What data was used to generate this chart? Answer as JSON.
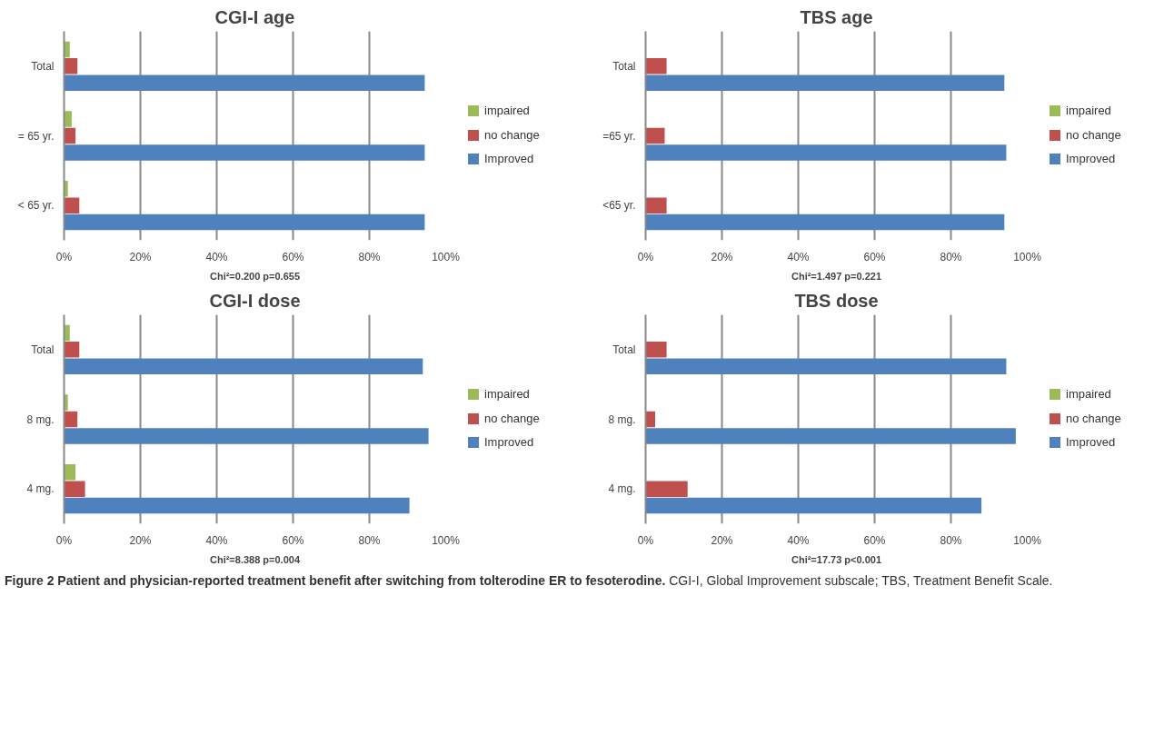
{
  "chart_data": [
    {
      "type": "bar",
      "orientation": "horizontal",
      "title": "CGI-I age",
      "xlabel": "Chi²=0.200 p=0.655",
      "categories": [
        "Total",
        "= 65 yr.",
        "< 65 yr."
      ],
      "series": [
        {
          "name": "impaired",
          "color": "#9bbb59",
          "values": [
            1.5,
            2,
            1
          ]
        },
        {
          "name": "no change",
          "color": "#c0504d",
          "values": [
            3.5,
            3,
            4
          ]
        },
        {
          "name": "Improved",
          "color": "#4f81bd",
          "values": [
            94.5,
            94.5,
            94.5
          ]
        }
      ],
      "xlim": [
        0,
        100
      ],
      "xticks": [
        {
          "value": 0,
          "label": "0%"
        },
        {
          "value": 20,
          "label": "20%"
        },
        {
          "value": 40,
          "label": "40%"
        },
        {
          "value": 60,
          "label": "60%"
        },
        {
          "value": 80,
          "label": "80%"
        },
        {
          "value": 100,
          "label": "100%"
        }
      ],
      "grid": "x",
      "legend": "right"
    },
    {
      "type": "bar",
      "orientation": "horizontal",
      "title": "TBS age",
      "xlabel": "Chi²=1.497 p=0.221",
      "categories": [
        "Total",
        "=65 yr.",
        "<65 yr."
      ],
      "series": [
        {
          "name": "impaired",
          "color": "#9bbb59",
          "values": [
            0,
            0,
            0
          ]
        },
        {
          "name": "no change",
          "color": "#c0504d",
          "values": [
            5.5,
            5,
            5.5
          ]
        },
        {
          "name": "Improved",
          "color": "#4f81bd",
          "values": [
            94,
            94.5,
            94
          ]
        }
      ],
      "xlim": [
        0,
        100
      ],
      "xticks": [
        {
          "value": 0,
          "label": "0%"
        },
        {
          "value": 20,
          "label": "20%"
        },
        {
          "value": 40,
          "label": "40%"
        },
        {
          "value": 60,
          "label": "60%"
        },
        {
          "value": 80,
          "label": "80%"
        },
        {
          "value": 100,
          "label": "100%"
        }
      ],
      "grid": "x",
      "legend": "right"
    },
    {
      "type": "bar",
      "orientation": "horizontal",
      "title": "CGI-I dose",
      "xlabel": "Chi²=8.388 p=0.004",
      "categories": [
        "Total",
        "8 mg.",
        "4 mg."
      ],
      "series": [
        {
          "name": "impaired",
          "color": "#9bbb59",
          "values": [
            1.5,
            1,
            3
          ]
        },
        {
          "name": "no change",
          "color": "#c0504d",
          "values": [
            4,
            3.5,
            5.5
          ]
        },
        {
          "name": "Improved",
          "color": "#4f81bd",
          "values": [
            94,
            95.5,
            90.5
          ]
        }
      ],
      "xlim": [
        0,
        100
      ],
      "xticks": [
        {
          "value": 0,
          "label": "0%"
        },
        {
          "value": 20,
          "label": "20%"
        },
        {
          "value": 40,
          "label": "40%"
        },
        {
          "value": 60,
          "label": "60%"
        },
        {
          "value": 80,
          "label": "80%"
        },
        {
          "value": 100,
          "label": "100%"
        }
      ],
      "grid": "x",
      "legend": "right"
    },
    {
      "type": "bar",
      "orientation": "horizontal",
      "title": "TBS dose",
      "xlabel": "Chi²=17.73 p<0.001",
      "categories": [
        "Total",
        "8 mg.",
        "4 mg."
      ],
      "series": [
        {
          "name": "impaired",
          "color": "#9bbb59",
          "values": [
            0,
            0,
            0
          ]
        },
        {
          "name": "no change",
          "color": "#c0504d",
          "values": [
            5.5,
            2.5,
            11
          ]
        },
        {
          "name": "Improved",
          "color": "#4f81bd",
          "values": [
            94.5,
            97,
            88
          ]
        }
      ],
      "xlim": [
        0,
        100
      ],
      "xticks": [
        {
          "value": 0,
          "label": "0%"
        },
        {
          "value": 20,
          "label": "20%"
        },
        {
          "value": 40,
          "label": "40%"
        },
        {
          "value": 60,
          "label": "60%"
        },
        {
          "value": 80,
          "label": "80%"
        },
        {
          "value": 100,
          "label": "100%"
        }
      ],
      "grid": "x",
      "legend": "right",
      "annotations": [
        "Figure 2 Patient and physician-reported treatment benefit after switching from tolterodine ER to fesoterodine.",
        "CGI-I, Global Improvement subscale; TBS, Treatment Benefit Scale."
      ]
    }
  ]
}
